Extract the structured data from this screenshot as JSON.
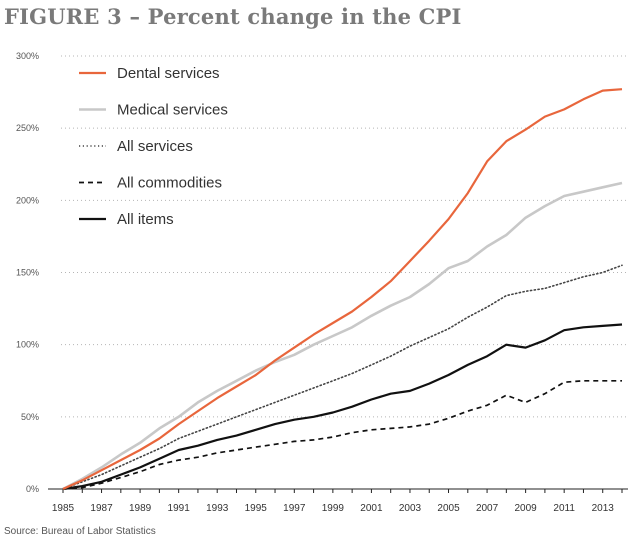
{
  "figure": {
    "title": "FIGURE 3 – Percent change in the CPI",
    "source": "Source: Bureau of Labor Statistics"
  },
  "chart_data": {
    "type": "line",
    "title": "FIGURE 3 – Percent change in the CPI",
    "xlabel": "",
    "ylabel": "",
    "xlim": [
      1985,
      2014
    ],
    "ylim": [
      0,
      300
    ],
    "grid": "horizontal dotted",
    "legend_position": "top-left",
    "y_ticks": [
      {
        "value": 0,
        "label": "0%"
      },
      {
        "value": 50,
        "label": "50%"
      },
      {
        "value": 100,
        "label": "100%"
      },
      {
        "value": 150,
        "label": "150%"
      },
      {
        "value": 200,
        "label": "200%"
      },
      {
        "value": 250,
        "label": "250%"
      },
      {
        "value": 300,
        "label": "300%"
      }
    ],
    "x_ticks": [
      {
        "value": 1985,
        "label": "1985"
      },
      {
        "value": 1987,
        "label": "1987"
      },
      {
        "value": 1989,
        "label": "1989"
      },
      {
        "value": 1991,
        "label": "1991"
      },
      {
        "value": 1993,
        "label": "1993"
      },
      {
        "value": 1995,
        "label": "1995"
      },
      {
        "value": 1997,
        "label": "1997"
      },
      {
        "value": 1999,
        "label": "1999"
      },
      {
        "value": 2001,
        "label": "2001"
      },
      {
        "value": 2003,
        "label": "2003"
      },
      {
        "value": 2005,
        "label": "2005"
      },
      {
        "value": 2007,
        "label": "2007"
      },
      {
        "value": 2009,
        "label": "2009"
      },
      {
        "value": 2011,
        "label": "2011"
      },
      {
        "value": 2013,
        "label": "2013"
      }
    ],
    "series": [
      {
        "name": "Dental services",
        "color": "#e8663c",
        "style": "solid",
        "x": [
          1985,
          1986,
          1987,
          1988,
          1989,
          1990,
          1991,
          1992,
          1993,
          1994,
          1995,
          1996,
          1997,
          1998,
          1999,
          2000,
          2001,
          2002,
          2003,
          2004,
          2005,
          2006,
          2007,
          2008,
          2009,
          2010,
          2011,
          2012,
          2013,
          2014
        ],
        "values": [
          0,
          6,
          13,
          20,
          27,
          35,
          45,
          54,
          63,
          71,
          79,
          89,
          98,
          107,
          115,
          123,
          133,
          144,
          158,
          172,
          187,
          205,
          227,
          241,
          249,
          258,
          263,
          270,
          276,
          277
        ]
      },
      {
        "name": "Medical services",
        "color": "#c8c8c8",
        "style": "solid",
        "x": [
          1985,
          1986,
          1987,
          1988,
          1989,
          1990,
          1991,
          1992,
          1993,
          1994,
          1995,
          1996,
          1997,
          1998,
          1999,
          2000,
          2001,
          2002,
          2003,
          2004,
          2005,
          2006,
          2007,
          2008,
          2009,
          2010,
          2011,
          2012,
          2013,
          2014
        ],
        "values": [
          0,
          7,
          15,
          24,
          32,
          42,
          50,
          60,
          68,
          75,
          82,
          88,
          93,
          100,
          106,
          112,
          120,
          127,
          133,
          142,
          153,
          158,
          168,
          176,
          188,
          196,
          203,
          206,
          209,
          212
        ]
      },
      {
        "name": "All services",
        "color": "#444444",
        "style": "dotted",
        "x": [
          1985,
          1986,
          1987,
          1988,
          1989,
          1990,
          1991,
          1992,
          1993,
          1994,
          1995,
          1996,
          1997,
          1998,
          1999,
          2000,
          2001,
          2002,
          2003,
          2004,
          2005,
          2006,
          2007,
          2008,
          2009,
          2010,
          2011,
          2012,
          2013,
          2014
        ],
        "values": [
          0,
          5,
          10,
          16,
          22,
          28,
          35,
          40,
          45,
          50,
          55,
          60,
          65,
          70,
          75,
          80,
          86,
          92,
          99,
          105,
          111,
          119,
          126,
          134,
          137,
          139,
          143,
          147,
          150,
          155
        ]
      },
      {
        "name": "All commodities",
        "color": "#111111",
        "style": "dashed",
        "x": [
          1985,
          1986,
          1987,
          1988,
          1989,
          1990,
          1991,
          1992,
          1993,
          1994,
          1995,
          1996,
          1997,
          1998,
          1999,
          2000,
          2001,
          2002,
          2003,
          2004,
          2005,
          2006,
          2007,
          2008,
          2009,
          2010,
          2011,
          2012,
          2013,
          2014
        ],
        "values": [
          0,
          1,
          4,
          8,
          12,
          17,
          20,
          22,
          25,
          27,
          29,
          31,
          33,
          34,
          36,
          39,
          41,
          42,
          43,
          45,
          49,
          54,
          58,
          65,
          60,
          66,
          74,
          75,
          75,
          75
        ]
      },
      {
        "name": "All items",
        "color": "#111111",
        "style": "solid",
        "x": [
          1985,
          1986,
          1987,
          1988,
          1989,
          1990,
          1991,
          1992,
          1993,
          1994,
          1995,
          1996,
          1997,
          1998,
          1999,
          2000,
          2001,
          2002,
          2003,
          2004,
          2005,
          2006,
          2007,
          2008,
          2009,
          2010,
          2011,
          2012,
          2013,
          2014
        ],
        "values": [
          0,
          2,
          5,
          10,
          15,
          21,
          27,
          30,
          34,
          37,
          41,
          45,
          48,
          50,
          53,
          57,
          62,
          66,
          68,
          73,
          79,
          86,
          92,
          100,
          98,
          103,
          110,
          112,
          113,
          114
        ]
      }
    ]
  }
}
